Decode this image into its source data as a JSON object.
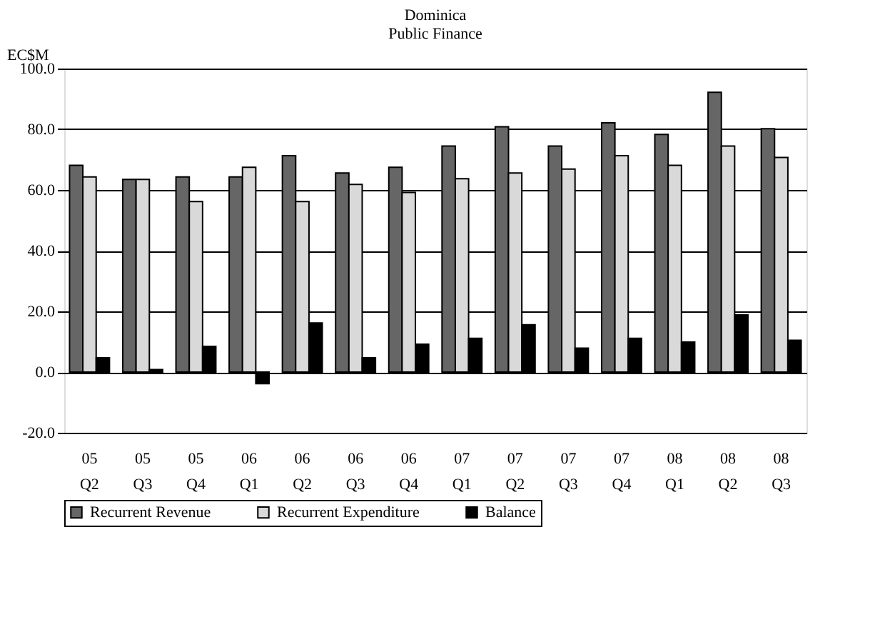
{
  "chart_data": {
    "type": "bar",
    "title": "Dominica",
    "subtitle": "Public Finance",
    "ylabel": "EC$M",
    "categories": [
      "05 Q2",
      "05 Q3",
      "05 Q4",
      "06 Q1",
      "06 Q2",
      "06 Q3",
      "06 Q4",
      "07 Q1",
      "07 Q2",
      "07 Q3",
      "07 Q4",
      "08 Q1",
      "08 Q2",
      "08 Q3"
    ],
    "series": [
      {
        "name": "Recurrent Revenue",
        "color": "#666666",
        "values": [
          68.1,
          63.5,
          64.3,
          64.3,
          71.3,
          65.6,
          67.5,
          74.5,
          80.8,
          74.5,
          82.1,
          78.3,
          92.2,
          80.2
        ]
      },
      {
        "name": "Recurrent Expenditure",
        "color": "#d9d9d9",
        "values": [
          64.3,
          63.5,
          56.2,
          67.5,
          56.2,
          61.8,
          59.2,
          63.7,
          65.6,
          66.9,
          71.3,
          68.1,
          74.5,
          70.7
        ]
      },
      {
        "name": "Balance",
        "color": "#000000",
        "values": [
          4.7,
          0.8,
          8.5,
          -3.8,
          16.2,
          4.7,
          9.2,
          11.1,
          15.6,
          7.9,
          11.1,
          9.9,
          18.8,
          10.5
        ]
      }
    ],
    "ylim": [
      -20,
      100
    ],
    "yticks": [
      {
        "value": -20,
        "label": "-20.0"
      },
      {
        "value": 0,
        "label": "0.0"
      },
      {
        "value": 20,
        "label": "20.0"
      },
      {
        "value": 40,
        "label": "40.0"
      },
      {
        "value": 60,
        "label": "60.0"
      },
      {
        "value": 80,
        "label": "80.0"
      },
      {
        "value": 100,
        "label": "100.0"
      }
    ],
    "grid": "y",
    "legend": "bottom"
  }
}
